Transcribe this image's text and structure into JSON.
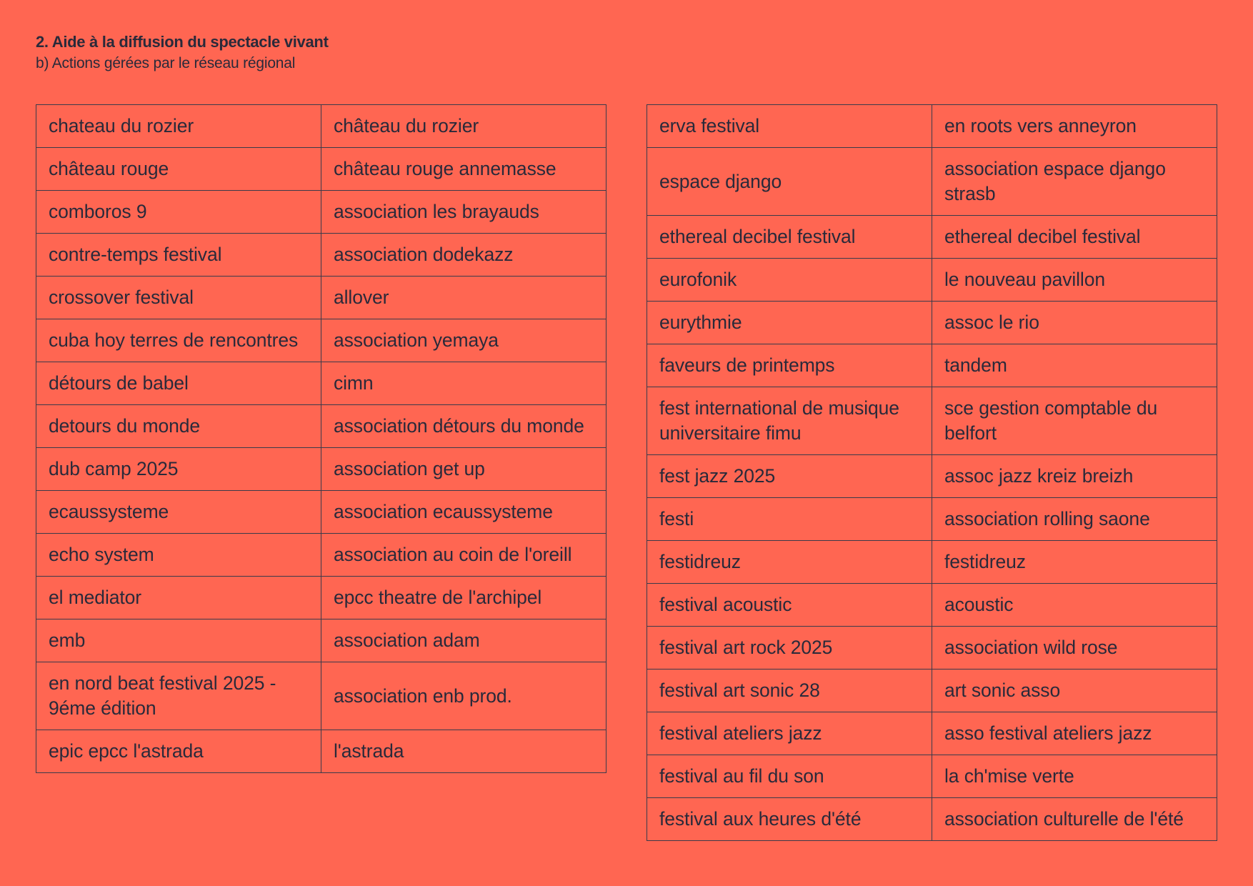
{
  "header": {
    "title": "2. Aide à la diffusion du spectacle vivant",
    "subtitle": "b) Actions gérées par le réseau régional"
  },
  "tables": {
    "left": [
      [
        "chateau du rozier",
        "château du rozier"
      ],
      [
        "château rouge",
        "château rouge annemasse"
      ],
      [
        "comboros 9",
        "association les brayauds"
      ],
      [
        "contre-temps festival",
        "association dodekazz"
      ],
      [
        "crossover festival",
        "allover"
      ],
      [
        "cuba hoy terres de rencontres",
        "association yemaya"
      ],
      [
        "détours de babel",
        "cimn"
      ],
      [
        "detours du monde",
        "association détours du monde"
      ],
      [
        "dub camp 2025",
        "association get up"
      ],
      [
        "ecaussysteme",
        "association ecaussysteme"
      ],
      [
        "echo system",
        "association au coin de l'oreill"
      ],
      [
        "el mediator",
        "epcc theatre de l'archipel"
      ],
      [
        "emb",
        "association adam"
      ],
      [
        "en nord beat festival 2025 - 9éme édition",
        "association enb prod."
      ],
      [
        "epic epcc l'astrada",
        "l'astrada"
      ]
    ],
    "right": [
      [
        "erva festival",
        "en roots vers anneyron"
      ],
      [
        "espace django",
        "association espace django strasb"
      ],
      [
        "ethereal decibel festival",
        "ethereal decibel festival"
      ],
      [
        "eurofonik",
        "le nouveau pavillon"
      ],
      [
        "eurythmie",
        "assoc le rio"
      ],
      [
        "faveurs de printemps",
        "tandem"
      ],
      [
        "fest international de musique universitaire fimu",
        "sce gestion comptable du belfort"
      ],
      [
        "fest jazz 2025",
        "assoc jazz kreiz breizh"
      ],
      [
        "festi",
        "association rolling saone"
      ],
      [
        "festidreuz",
        "festidreuz"
      ],
      [
        "festival acoustic",
        "acoustic"
      ],
      [
        "festival art rock 2025",
        "association wild rose"
      ],
      [
        "festival art sonic 28",
        "art sonic asso"
      ],
      [
        "festival ateliers jazz",
        "asso festival ateliers jazz"
      ],
      [
        "festival au fil du son",
        "la ch'mise verte"
      ],
      [
        "festival aux heures d'été",
        "association culturelle de l'été"
      ]
    ]
  }
}
